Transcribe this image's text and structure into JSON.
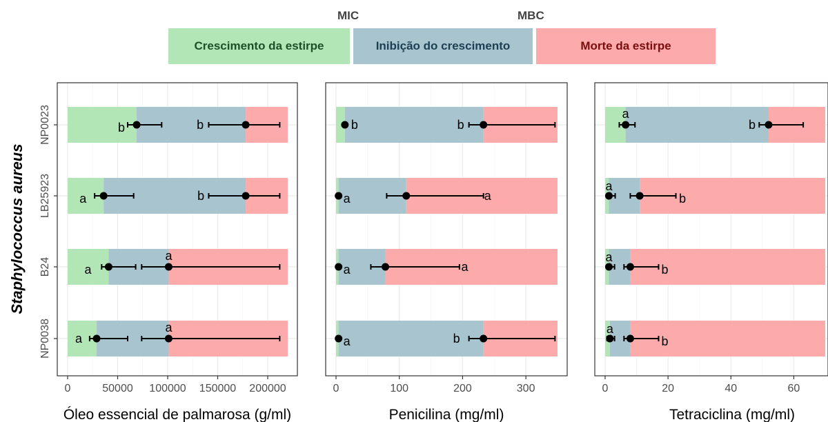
{
  "legend": {
    "mic_label": "MIC",
    "mbc_label": "MBC",
    "zones": [
      {
        "label": "Crescimento da estirpe",
        "fill": "#b2e6b7",
        "text_color": "#1f4f26"
      },
      {
        "label": "Inibição do crescimento",
        "fill": "#a7c4cf",
        "text_color": "#1d3f52"
      },
      {
        "label": "Morte da estirpe",
        "fill": "#fcaaaa",
        "text_color": "#7a0e0e"
      }
    ]
  },
  "y_axis_title": "Staphylococcus aureus",
  "colors": {
    "growth": "#b2e6b7",
    "inhibition": "#a7c4cf",
    "death": "#fcaaaa",
    "point": "#000000",
    "grid": "#ebebeb",
    "panel_border": "#333333"
  },
  "chart_data": [
    {
      "type": "bar",
      "orientation": "horizontal",
      "xlabel": "Óleo essencial de palmarosa (g/ml)",
      "xlim": [
        0,
        220000
      ],
      "xticks": [
        0,
        50000,
        100000,
        150000,
        200000
      ],
      "xtick_labels": [
        "0",
        "50000",
        "100000",
        "150000",
        "200000"
      ],
      "categories": [
        "NP0023",
        "LB25923",
        "B24",
        "NP0038"
      ],
      "mic": [
        {
          "value": 69000,
          "err": [
            60000,
            94000
          ],
          "letter": "b"
        },
        {
          "value": 36000,
          "err": [
            27000,
            66000
          ],
          "letter": "a"
        },
        {
          "value": 41000,
          "err": [
            34000,
            68000
          ],
          "letter": "a"
        },
        {
          "value": 29000,
          "err": [
            22000,
            60000
          ],
          "letter": "a"
        }
      ],
      "mbc": [
        {
          "value": 178000,
          "err": [
            141000,
            212000
          ],
          "letter": "b"
        },
        {
          "value": 178000,
          "err": [
            141000,
            212000
          ],
          "letter": "b"
        },
        {
          "value": 101000,
          "err": [
            74000,
            212000
          ],
          "letter": "a"
        },
        {
          "value": 101000,
          "err": [
            74000,
            212000
          ],
          "letter": "a"
        }
      ]
    },
    {
      "type": "bar",
      "orientation": "horizontal",
      "xlabel": "Penicilina (mg/ml)",
      "xlim": [
        0,
        350
      ],
      "xticks": [
        0,
        100,
        200,
        300
      ],
      "xtick_labels": [
        "0",
        "100",
        "200",
        "300"
      ],
      "categories": [
        "NP0023",
        "LB25923",
        "B24",
        "NP0038"
      ],
      "mic": [
        {
          "value": 14,
          "err": [
            14,
            14
          ],
          "letter": "b"
        },
        {
          "value": 4,
          "err": [
            4,
            4
          ],
          "letter": "a"
        },
        {
          "value": 4,
          "err": [
            4,
            4
          ],
          "letter": "a"
        },
        {
          "value": 4,
          "err": [
            4,
            4
          ],
          "letter": "a"
        }
      ],
      "mbc": [
        {
          "value": 233,
          "err": [
            210,
            346
          ],
          "letter": "b"
        },
        {
          "value": 111,
          "err": [
            80,
            233
          ],
          "letter": "a"
        },
        {
          "value": 78,
          "err": [
            55,
            195
          ],
          "letter": "a"
        },
        {
          "value": 233,
          "err": [
            210,
            346
          ],
          "letter": "b"
        }
      ]
    },
    {
      "type": "bar",
      "orientation": "horizontal",
      "xlabel": "Tetraciclina (mg/ml)",
      "xlim": [
        0,
        70
      ],
      "xticks": [
        0,
        20,
        40,
        60
      ],
      "xtick_labels": [
        "0",
        "20",
        "40",
        "60"
      ],
      "categories": [
        "NP0023",
        "LB25923",
        "B24",
        "NP0038"
      ],
      "mic": [
        {
          "value": 6.5,
          "err": [
            4.5,
            9.5
          ],
          "letter": "a"
        },
        {
          "value": 1.2,
          "err": [
            0.6,
            3.2
          ],
          "letter": "a"
        },
        {
          "value": 1.2,
          "err": [
            0.6,
            3.0
          ],
          "letter": "a"
        },
        {
          "value": 1.5,
          "err": [
            0.6,
            3.0
          ],
          "letter": "a"
        }
      ],
      "mbc": [
        {
          "value": 52,
          "err": [
            49,
            63
          ],
          "letter": "b"
        },
        {
          "value": 11,
          "err": [
            8,
            22.5
          ],
          "letter": "b"
        },
        {
          "value": 8,
          "err": [
            6,
            17
          ],
          "letter": "b"
        },
        {
          "value": 8,
          "err": [
            6,
            17
          ],
          "letter": "b"
        }
      ]
    }
  ]
}
